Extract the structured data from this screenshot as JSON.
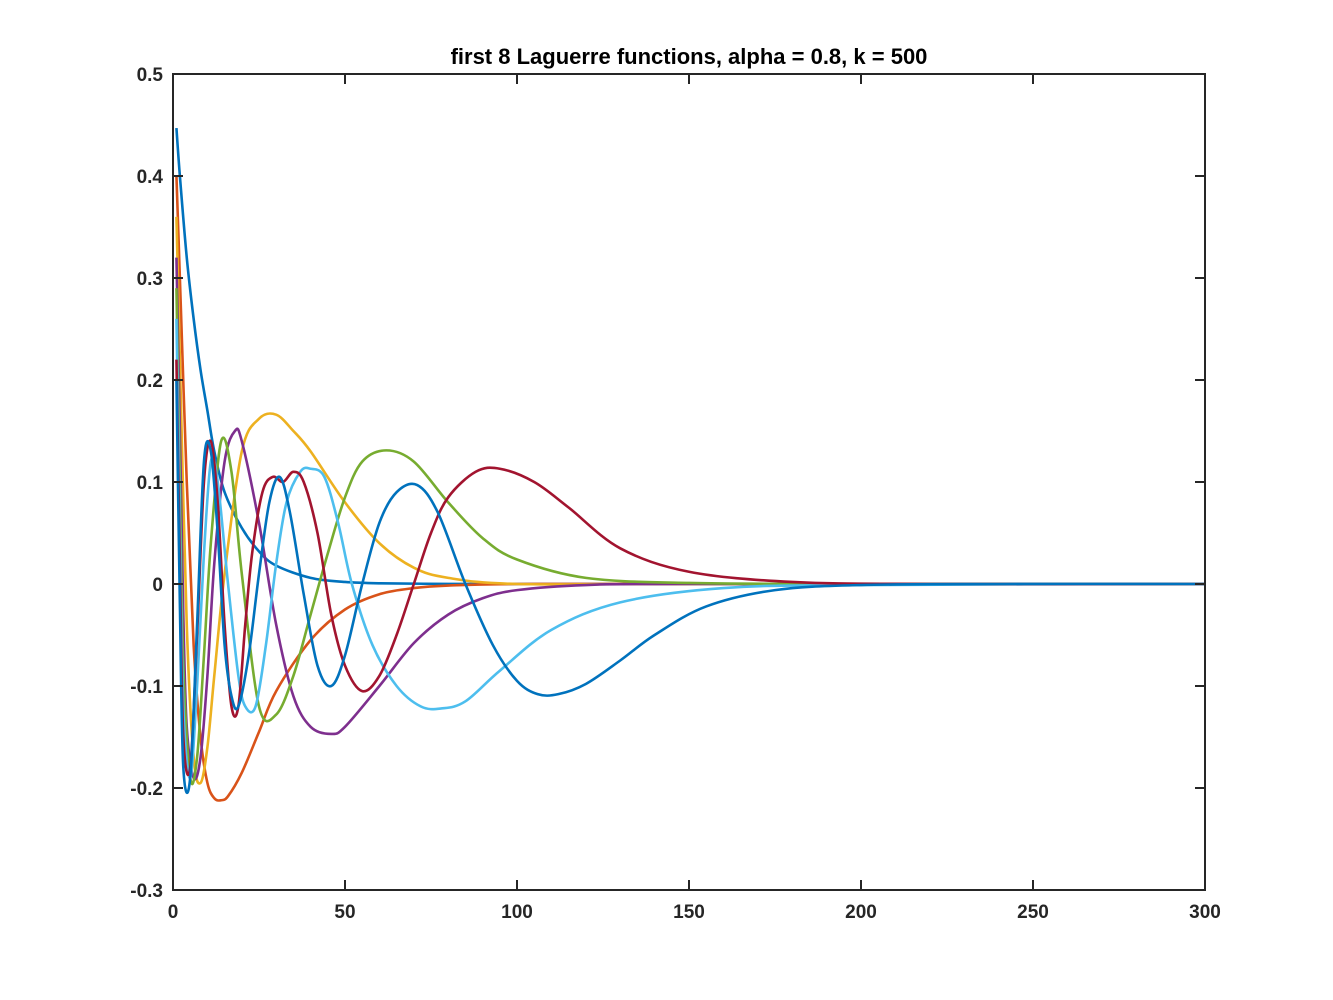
{
  "chart_data": {
    "type": "line",
    "title": "first 8 Laguerre functions, alpha = 0.8, k = 500",
    "xlabel": "",
    "ylabel": "",
    "xlim": [
      0,
      300
    ],
    "ylim": [
      -0.3,
      0.5
    ],
    "grid": false,
    "legend": "none",
    "x_ticks": [
      "0",
      "50",
      "100",
      "150",
      "200",
      "250",
      "300"
    ],
    "y_ticks": [
      "-0.3",
      "-0.2",
      "-0.1",
      "0",
      "0.1",
      "0.2",
      "0.3",
      "0.4",
      "0.5"
    ],
    "x_tick_values": [
      0,
      50,
      100,
      150,
      200,
      250,
      300
    ],
    "y_tick_values": [
      -0.3,
      -0.2,
      -0.1,
      0,
      0.1,
      0.2,
      0.3,
      0.4,
      0.5
    ],
    "parameters": {
      "alpha": 0.8,
      "k": 500,
      "count": 8
    },
    "series": [
      {
        "color": "#0072BD",
        "x": [
          1,
          2,
          4,
          6,
          8,
          10,
          12,
          15,
          20,
          25,
          30,
          40,
          50,
          60,
          80,
          100,
          150,
          200,
          300
        ],
        "values": [
          0.447,
          0.4,
          0.32,
          0.26,
          0.21,
          0.17,
          0.13,
          0.09,
          0.055,
          0.032,
          0.018,
          0.006,
          0.002,
          0.0007,
          0.0001,
          0.0,
          0.0,
          0.0,
          0.0
        ]
      },
      {
        "color": "#D95319",
        "x": [
          1,
          2,
          4,
          6,
          8,
          10,
          12,
          14,
          16,
          20,
          25,
          30,
          40,
          50,
          60,
          70,
          80,
          100,
          150,
          300
        ],
        "values": [
          0.4,
          0.3,
          0.1,
          -0.06,
          -0.15,
          -0.195,
          -0.21,
          -0.212,
          -0.208,
          -0.185,
          -0.145,
          -0.105,
          -0.055,
          -0.025,
          -0.01,
          -0.004,
          -0.0015,
          0.0,
          0.0,
          0.0
        ]
      },
      {
        "color": "#EDB120",
        "x": [
          1,
          2,
          4,
          6,
          8,
          10,
          12,
          15,
          20,
          25,
          30,
          35,
          40,
          50,
          60,
          70,
          80,
          100,
          150,
          300
        ],
        "values": [
          0.36,
          0.22,
          -0.04,
          -0.17,
          -0.195,
          -0.16,
          -0.09,
          0.01,
          0.13,
          0.162,
          0.166,
          0.15,
          0.13,
          0.08,
          0.04,
          0.016,
          0.006,
          0.0,
          0.0,
          0.0
        ]
      },
      {
        "color": "#7E2F8E",
        "x": [
          1,
          2,
          3,
          4,
          6,
          8,
          10,
          12,
          15,
          18,
          20,
          25,
          30,
          35,
          40,
          46,
          50,
          60,
          70,
          80,
          90,
          100,
          120,
          150,
          300
        ],
        "values": [
          0.32,
          0.15,
          -0.03,
          -0.14,
          -0.19,
          -0.17,
          -0.09,
          0.02,
          0.12,
          0.15,
          0.14,
          0.06,
          -0.04,
          -0.11,
          -0.14,
          -0.147,
          -0.14,
          -0.1,
          -0.058,
          -0.03,
          -0.014,
          -0.006,
          -0.001,
          0.0,
          0.0
        ]
      },
      {
        "color": "#77AC30",
        "x": [
          1,
          2,
          3,
          5,
          7,
          9,
          11,
          14,
          17,
          20,
          25,
          30,
          35,
          40,
          45,
          50,
          55,
          62,
          70,
          80,
          90,
          100,
          120,
          150,
          200,
          300
        ],
        "values": [
          0.29,
          0.1,
          -0.08,
          -0.19,
          -0.17,
          -0.07,
          0.04,
          0.14,
          0.11,
          0.01,
          -0.12,
          -0.128,
          -0.09,
          -0.03,
          0.03,
          0.085,
          0.12,
          0.131,
          0.12,
          0.08,
          0.045,
          0.024,
          0.006,
          0.001,
          0.0,
          0.0
        ]
      },
      {
        "color": "#4DBEEE",
        "x": [
          1,
          2,
          3,
          5,
          7,
          9,
          11,
          13,
          16,
          19,
          21,
          24,
          27,
          30,
          33,
          37,
          40,
          44,
          48,
          52,
          58,
          65,
          72,
          78,
          85,
          95,
          110,
          130,
          160,
          200,
          300
        ],
        "values": [
          0.26,
          0.06,
          -0.12,
          -0.19,
          -0.1,
          0.03,
          0.12,
          0.1,
          0.0,
          -0.09,
          -0.12,
          -0.12,
          -0.06,
          0.02,
          0.08,
          0.11,
          0.113,
          0.105,
          0.06,
          0.0,
          -0.06,
          -0.1,
          -0.12,
          -0.122,
          -0.115,
          -0.085,
          -0.045,
          -0.018,
          -0.004,
          -0.001,
          0.0
        ]
      },
      {
        "color": "#A2142F",
        "x": [
          1,
          2,
          3,
          5,
          7,
          9,
          11,
          13,
          15,
          17,
          19,
          21,
          23,
          26,
          29,
          32,
          35,
          38,
          42,
          46,
          50,
          55,
          60,
          65,
          70,
          75,
          80,
          88,
          95,
          105,
          115,
          130,
          150,
          180,
          220,
          300
        ],
        "values": [
          0.22,
          0.02,
          -0.15,
          -0.18,
          -0.05,
          0.1,
          0.14,
          0.08,
          -0.04,
          -0.12,
          -0.12,
          -0.04,
          0.03,
          0.09,
          0.105,
          0.1,
          0.11,
          0.1,
          0.05,
          -0.03,
          -0.08,
          -0.105,
          -0.09,
          -0.05,
          0.0,
          0.05,
          0.085,
          0.11,
          0.113,
          0.1,
          0.075,
          0.035,
          0.012,
          0.002,
          0.0,
          0.0
        ]
      },
      {
        "color": "#0072BD",
        "x": [
          1,
          2,
          3,
          5,
          7,
          9,
          11,
          13,
          15,
          17,
          19,
          22,
          25,
          28,
          31,
          34,
          38,
          42,
          46,
          50,
          55,
          60,
          65,
          71,
          77,
          85,
          93,
          100,
          106,
          112,
          120,
          130,
          140,
          155,
          175,
          200,
          240,
          300
        ],
        "values": [
          0.2,
          -0.02,
          -0.18,
          -0.19,
          -0.04,
          0.12,
          0.13,
          0.05,
          -0.06,
          -0.11,
          -0.12,
          -0.07,
          0.01,
          0.08,
          0.105,
          0.07,
          -0.01,
          -0.08,
          -0.1,
          -0.07,
          0.0,
          0.06,
          0.09,
          0.097,
          0.07,
          0.0,
          -0.06,
          -0.095,
          -0.108,
          -0.108,
          -0.098,
          -0.075,
          -0.05,
          -0.022,
          -0.006,
          -0.001,
          0.0,
          0.0
        ]
      }
    ]
  }
}
